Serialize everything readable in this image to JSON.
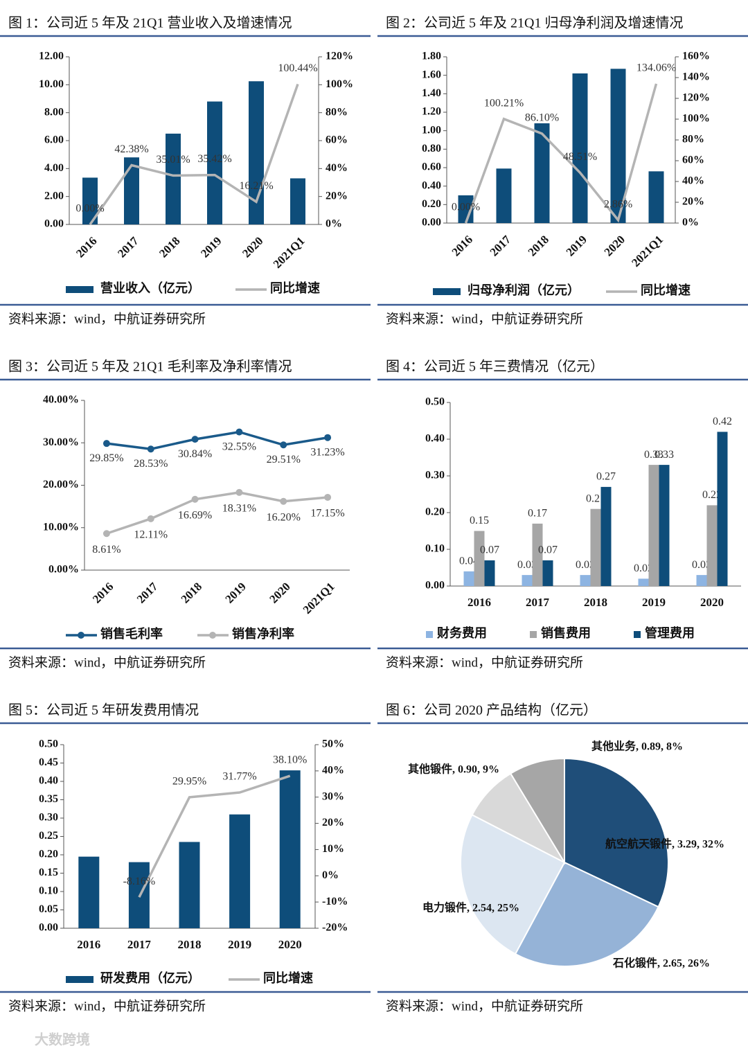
{
  "watermark": "大数跨境",
  "chart_data": [
    {
      "type": "combo",
      "title": "图 1：公司近 5 年及 21Q1 营业收入及增速情况",
      "source": "资料来源：wind，中航证券研究所",
      "categories": [
        "2016",
        "2017",
        "2018",
        "2019",
        "2020",
        "2021Q1"
      ],
      "series": [
        {
          "name": "营业收入（亿元）",
          "type": "bar",
          "color": "#0e4d7a",
          "values": [
            3.35,
            4.8,
            6.5,
            8.8,
            10.25,
            3.3
          ]
        },
        {
          "name": "同比增速",
          "type": "line",
          "axis": "y2",
          "color": "#b4b4b4",
          "values": [
            0,
            42.38,
            35.01,
            35.42,
            16.21,
            100.44
          ],
          "value_labels": [
            "0.00%",
            "42.38%",
            "35.01%",
            "35.42%",
            "16.21%",
            "100.44%"
          ]
        }
      ],
      "ylim": [
        0,
        12
      ],
      "yticks": [
        {
          "value": 0,
          "label": "0.00"
        },
        {
          "value": 2,
          "label": "2.00"
        },
        {
          "value": 4,
          "label": "4.00"
        },
        {
          "value": 6,
          "label": "6.00"
        },
        {
          "value": 8,
          "label": "8.00"
        },
        {
          "value": 10,
          "label": "10.00"
        },
        {
          "value": 12,
          "label": "12.00"
        }
      ],
      "y2lim": [
        0,
        120
      ],
      "y2ticks": [
        {
          "value": 0,
          "label": "0%"
        },
        {
          "value": 20,
          "label": "20%"
        },
        {
          "value": 40,
          "label": "40%"
        },
        {
          "value": 60,
          "label": "60%"
        },
        {
          "value": 80,
          "label": "80%"
        },
        {
          "value": 100,
          "label": "100%"
        },
        {
          "value": 120,
          "label": "120%"
        }
      ]
    },
    {
      "type": "combo",
      "title": "图 2：公司近 5 年及 21Q1 归母净利润及增速情况",
      "source": "资料来源：wind，中航证券研究所",
      "categories": [
        "2016",
        "2017",
        "2018",
        "2019",
        "2020",
        "2021Q1"
      ],
      "series": [
        {
          "name": "归母净利润（亿元）",
          "type": "bar",
          "color": "#0e4d7a",
          "values": [
            0.3,
            0.59,
            1.08,
            1.62,
            1.67,
            0.56
          ]
        },
        {
          "name": "同比增速",
          "type": "line",
          "axis": "y2",
          "color": "#b4b4b4",
          "values": [
            0,
            100.21,
            86.1,
            48.51,
            2.86,
            134.06
          ],
          "value_labels": [
            "0.00%",
            "100.21%",
            "86.10%",
            "48.51%",
            "2.86%",
            "134.06%"
          ]
        }
      ],
      "ylim": [
        0,
        1.8
      ],
      "yticks": [
        {
          "value": 0,
          "label": "0.00"
        },
        {
          "value": 0.2,
          "label": "0.20"
        },
        {
          "value": 0.4,
          "label": "0.40"
        },
        {
          "value": 0.6,
          "label": "0.60"
        },
        {
          "value": 0.8,
          "label": "0.80"
        },
        {
          "value": 1,
          "label": "1.00"
        },
        {
          "value": 1.2,
          "label": "1.20"
        },
        {
          "value": 1.4,
          "label": "1.40"
        },
        {
          "value": 1.6,
          "label": "1.60"
        },
        {
          "value": 1.8,
          "label": "1.80"
        }
      ],
      "y2lim": [
        0,
        160
      ],
      "y2ticks": [
        {
          "value": 0,
          "label": "0%"
        },
        {
          "value": 20,
          "label": "20%"
        },
        {
          "value": 40,
          "label": "40%"
        },
        {
          "value": 60,
          "label": "60%"
        },
        {
          "value": 80,
          "label": "80%"
        },
        {
          "value": 100,
          "label": "100%"
        },
        {
          "value": 120,
          "label": "120%"
        },
        {
          "value": 140,
          "label": "140%"
        },
        {
          "value": 160,
          "label": "160%"
        }
      ]
    },
    {
      "type": "line",
      "title": "图 3：公司近 5 年及 21Q1 毛利率及净利率情况",
      "source": "资料来源：wind，中航证券研究所",
      "categories": [
        "2016",
        "2017",
        "2018",
        "2019",
        "2020",
        "2021Q1"
      ],
      "series": [
        {
          "name": "销售毛利率",
          "color": "#1a5a8a",
          "values": [
            29.85,
            28.53,
            30.84,
            32.55,
            29.51,
            31.23
          ],
          "value_labels": [
            "29.85%",
            "28.53%",
            "30.84%",
            "32.55%",
            "29.51%",
            "31.23%"
          ]
        },
        {
          "name": "销售净利率",
          "color": "#b4b4b4",
          "values": [
            8.61,
            12.11,
            16.69,
            18.31,
            16.2,
            17.15
          ],
          "value_labels": [
            "8.61%",
            "12.11%",
            "16.69%",
            "18.31%",
            "16.20%",
            "17.15%"
          ]
        }
      ],
      "ylim": [
        0,
        40
      ],
      "yticks": [
        {
          "value": 0,
          "label": "0.00%"
        },
        {
          "value": 10,
          "label": "10.00%"
        },
        {
          "value": 20,
          "label": "20.00%"
        },
        {
          "value": 30,
          "label": "30.00%"
        },
        {
          "value": 40,
          "label": "40.00%"
        }
      ]
    },
    {
      "type": "bar",
      "title": "图 4：公司近 5 年三费情况（亿元）",
      "source": "资料来源：wind，中航证券研究所",
      "categories": [
        "2016",
        "2017",
        "2018",
        "2019",
        "2020"
      ],
      "series": [
        {
          "name": "财务费用",
          "color": "#8db4e2",
          "values": [
            0.04,
            0.03,
            0.03,
            0.02,
            0.03
          ]
        },
        {
          "name": "销售费用",
          "color": "#a6a6a6",
          "values": [
            0.15,
            0.17,
            0.21,
            0.33,
            0.22
          ]
        },
        {
          "name": "管理费用",
          "color": "#0e4d7a",
          "values": [
            0.07,
            0.07,
            0.27,
            0.33,
            0.42
          ]
        }
      ],
      "ylim": [
        0,
        0.5
      ],
      "yticks": [
        {
          "value": 0,
          "label": "0.00"
        },
        {
          "value": 0.1,
          "label": "0.10"
        },
        {
          "value": 0.2,
          "label": "0.20"
        },
        {
          "value": 0.3,
          "label": "0.30"
        },
        {
          "value": 0.4,
          "label": "0.40"
        },
        {
          "value": 0.5,
          "label": "0.50"
        }
      ]
    },
    {
      "type": "combo",
      "title": "图 5：公司近 5 年研发费用情况",
      "source": "资料来源：wind，中航证券研究所",
      "categories": [
        "2016",
        "2017",
        "2018",
        "2019",
        "2020"
      ],
      "series": [
        {
          "name": "研发费用（亿元）",
          "type": "bar",
          "color": "#0e4d7a",
          "values": [
            0.195,
            0.18,
            0.235,
            0.31,
            0.43
          ]
        },
        {
          "name": "同比增速",
          "type": "line",
          "axis": "y2",
          "color": "#b4b4b4",
          "values": [
            null,
            -8.16,
            29.95,
            31.77,
            38.1
          ],
          "value_labels": [
            null,
            "-8.16%",
            "29.95%",
            "31.77%",
            "38.10%"
          ]
        }
      ],
      "ylim": [
        0,
        0.5
      ],
      "yticks": [
        {
          "value": 0,
          "label": "0.00"
        },
        {
          "value": 0.05,
          "label": "0.05"
        },
        {
          "value": 0.1,
          "label": "0.10"
        },
        {
          "value": 0.15,
          "label": "0.15"
        },
        {
          "value": 0.2,
          "label": "0.20"
        },
        {
          "value": 0.25,
          "label": "0.25"
        },
        {
          "value": 0.3,
          "label": "0.30"
        },
        {
          "value": 0.35,
          "label": "0.35"
        },
        {
          "value": 0.4,
          "label": "0.40"
        },
        {
          "value": 0.45,
          "label": "0.45"
        },
        {
          "value": 0.5,
          "label": "0.50"
        }
      ],
      "y2lim": [
        -20,
        50
      ],
      "y2ticks": [
        {
          "value": -20,
          "label": "-20%"
        },
        {
          "value": -10,
          "label": "-10%"
        },
        {
          "value": 0,
          "label": "0%"
        },
        {
          "value": 10,
          "label": "10%"
        },
        {
          "value": 20,
          "label": "20%"
        },
        {
          "value": 30,
          "label": "30%"
        },
        {
          "value": 40,
          "label": "40%"
        },
        {
          "value": 50,
          "label": "50%"
        }
      ]
    },
    {
      "type": "pie",
      "title": "图 6：公司 2020 产品结构（亿元）",
      "source": "资料来源：wind，中航证券研究所",
      "values": [
        3.29,
        2.65,
        2.54,
        0.9,
        0.89
      ],
      "value_labels": [
        "航空航天锻件, 3.29, 32%",
        "石化锻件, 2.65, 26%",
        "电力锻件, 2.54, 25%",
        "其他锻件, 0.90, 9%",
        "其他业务, 0.89, 8%"
      ],
      "colors": [
        "#1f4e79",
        "#95b3d7",
        "#dce6f1",
        "#d9d9d9",
        "#a6a6a6"
      ]
    }
  ]
}
